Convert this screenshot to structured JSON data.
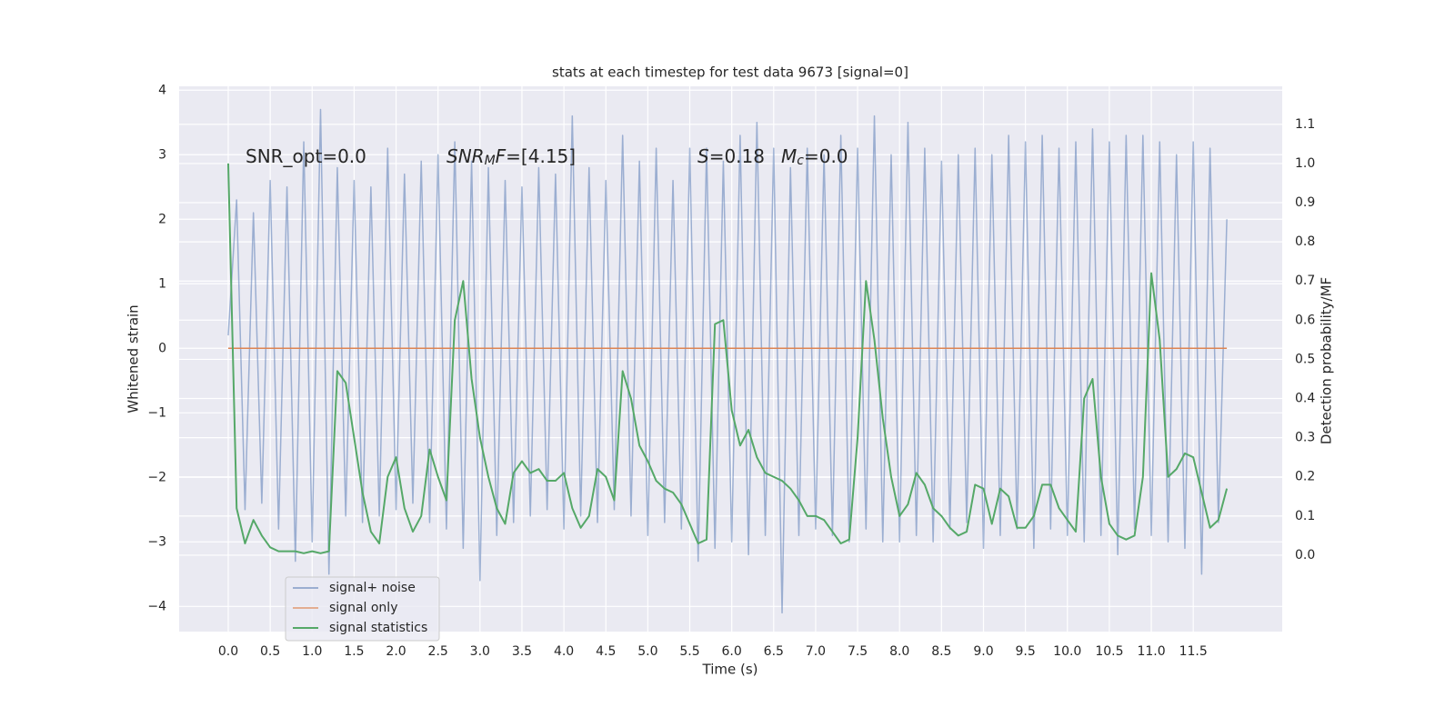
{
  "chart_data": {
    "type": "line",
    "title": "stats at each timestep for test data 9673 [signal=0]",
    "xlabel": "Time (s)",
    "ylabel": "Whitened strain",
    "y2label": "Detection probability/MF",
    "annotations": [
      [
        {
          "text": "SNR_opt=0.0"
        }
      ],
      [
        {
          "text": "SNR",
          "style": "italic"
        },
        {
          "text": "M",
          "style": "italic-sub"
        },
        {
          "text": "F",
          "style": "italic"
        },
        {
          "text": "=[4.15]"
        }
      ],
      [
        {
          "text": "S",
          "style": "italic"
        },
        {
          "text": "=0.18"
        }
      ],
      [
        {
          "text": "M",
          "style": "italic"
        },
        {
          "text": "c",
          "style": "italic-sub"
        },
        {
          "text": "=0.0"
        }
      ]
    ],
    "xlim": [
      -0.585,
      12.56
    ],
    "ylim": [
      -4.39,
      4.06
    ],
    "y2lim": [
      -0.195,
      1.197
    ],
    "xticks": [
      {
        "value": 0,
        "label": "0.0"
      },
      0.5,
      {
        "value": 1,
        "label": "1.0"
      },
      1.5,
      {
        "value": 2,
        "label": "2.0"
      },
      2.5,
      {
        "value": 3,
        "label": "3.0"
      },
      3.5,
      {
        "value": 4,
        "label": "4.0"
      },
      4.5,
      {
        "value": 5,
        "label": "5.0"
      },
      5.5,
      {
        "value": 6,
        "label": "6.0"
      },
      6.5,
      {
        "value": 7,
        "label": "7.0"
      },
      7.5,
      {
        "value": 8,
        "label": "8.0"
      },
      8.5,
      {
        "value": 9,
        "label": "9.0"
      },
      9.5,
      {
        "value": 10,
        "label": "10.0"
      },
      10.5,
      {
        "value": 11,
        "label": "11.0"
      },
      11.5
    ],
    "yticks": [
      {
        "value": -4,
        "label": "−4"
      },
      {
        "value": -3,
        "label": "−3"
      },
      {
        "value": -2,
        "label": "−2"
      },
      {
        "value": -1,
        "label": "−1"
      },
      0,
      1,
      2,
      3,
      4
    ],
    "y2ticks": [
      {
        "value": 0,
        "label": "0.0"
      },
      0.1,
      0.2,
      0.3,
      0.4,
      0.5,
      0.6,
      0.7,
      0.8,
      0.9,
      {
        "value": 1,
        "label": "1.0"
      },
      1.1
    ],
    "grid": true,
    "legend": "lower left",
    "x": [
      0,
      0.1,
      0.2,
      0.3,
      0.4,
      0.5,
      0.6,
      0.7,
      0.8,
      0.9,
      1.0,
      1.1,
      1.2,
      1.3,
      1.4,
      1.5,
      1.6,
      1.7,
      1.8,
      1.9,
      2.0,
      2.1,
      2.2,
      2.3,
      2.4,
      2.5,
      2.6,
      2.7,
      2.8,
      2.9,
      3.0,
      3.1,
      3.2,
      3.3,
      3.4,
      3.5,
      3.6,
      3.7,
      3.8,
      3.9,
      4.0,
      4.1,
      4.2,
      4.3,
      4.4,
      4.5,
      4.6,
      4.7,
      4.8,
      4.9,
      5.0,
      5.1,
      5.2,
      5.3,
      5.4,
      5.5,
      5.6,
      5.7,
      5.8,
      5.9,
      6.0,
      6.1,
      6.2,
      6.3,
      6.4,
      6.5,
      6.6,
      6.7,
      6.8,
      6.9,
      7.0,
      7.1,
      7.2,
      7.3,
      7.4,
      7.5,
      7.6,
      7.7,
      7.8,
      7.9,
      8.0,
      8.1,
      8.2,
      8.3,
      8.4,
      8.5,
      8.6,
      8.7,
      8.8,
      8.9,
      9.0,
      9.1,
      9.2,
      9.3,
      9.4,
      9.5,
      9.6,
      9.7,
      9.8,
      9.9,
      10.0,
      10.1,
      10.2,
      10.3,
      10.4,
      10.5,
      10.6,
      10.7,
      10.8,
      10.9,
      11.0,
      11.1,
      11.2,
      11.3,
      11.4,
      11.5,
      11.6,
      11.7,
      11.8,
      11.9
    ],
    "series": [
      {
        "name": "signal+ noise",
        "color": "#4c72b0",
        "values": [
          0.2,
          2.3,
          -2.5,
          2.1,
          -2.4,
          2.6,
          -2.8,
          2.5,
          -3.3,
          3.2,
          -3.0,
          3.7,
          -3.5,
          2.8,
          -2.6,
          2.6,
          -2.7,
          2.5,
          -2.6,
          3.1,
          -2.5,
          2.7,
          -2.4,
          2.9,
          -2.7,
          3.0,
          -2.8,
          3.2,
          -3.1,
          2.9,
          -3.6,
          2.8,
          -2.9,
          2.6,
          -2.7,
          2.5,
          -2.6,
          2.8,
          -2.5,
          2.7,
          -2.8,
          3.6,
          -2.6,
          2.8,
          -2.7,
          2.6,
          -2.5,
          3.3,
          -2.6,
          2.9,
          -2.9,
          3.1,
          -2.7,
          2.6,
          -2.8,
          3.1,
          -3.3,
          3.1,
          -3.1,
          2.9,
          -3.0,
          3.3,
          -3.2,
          3.5,
          -2.9,
          3.1,
          -4.1,
          2.8,
          -2.9,
          3.1,
          -2.8,
          3.0,
          -2.9,
          3.3,
          -3.0,
          3.1,
          -2.8,
          3.6,
          -3.0,
          3.0,
          -3.0,
          3.5,
          -2.9,
          3.1,
          -3.0,
          2.9,
          -2.8,
          3.0,
          -2.7,
          3.1,
          -3.1,
          3.0,
          -2.9,
          3.3,
          -2.8,
          3.2,
          -3.1,
          3.3,
          -2.8,
          3.1,
          -2.9,
          3.2,
          -3.0,
          3.4,
          -2.9,
          3.2,
          -3.2,
          3.3,
          -2.8,
          3.3,
          -2.9,
          3.2,
          -3.0,
          3.0,
          -3.1,
          3.2,
          -3.5,
          3.1,
          -2.7,
          2.0
        ]
      },
      {
        "name": "signal only",
        "color": "#dd8452",
        "values": [
          0,
          0,
          0,
          0,
          0,
          0,
          0,
          0,
          0,
          0,
          0,
          0,
          0,
          0,
          0,
          0,
          0,
          0,
          0,
          0,
          0,
          0,
          0,
          0,
          0,
          0,
          0,
          0,
          0,
          0,
          0,
          0,
          0,
          0,
          0,
          0,
          0,
          0,
          0,
          0,
          0,
          0,
          0,
          0,
          0,
          0,
          0,
          0,
          0,
          0,
          0,
          0,
          0,
          0,
          0,
          0,
          0,
          0,
          0,
          0,
          0,
          0,
          0,
          0,
          0,
          0,
          0,
          0,
          0,
          0,
          0,
          0,
          0,
          0,
          0,
          0,
          0,
          0,
          0,
          0,
          0,
          0,
          0,
          0,
          0,
          0,
          0,
          0,
          0,
          0,
          0,
          0,
          0,
          0,
          0,
          0,
          0,
          0,
          0,
          0,
          0,
          0,
          0,
          0,
          0,
          0,
          0,
          0,
          0,
          0,
          0,
          0,
          0,
          0,
          0,
          0,
          0,
          0,
          0,
          0
        ]
      },
      {
        "name": "signal statistics",
        "color": "#55a868",
        "axis": "y2",
        "values": [
          1.0,
          0.12,
          0.03,
          0.09,
          0.05,
          0.02,
          0.01,
          0.01,
          0.01,
          0.005,
          0.01,
          0.005,
          0.01,
          0.47,
          0.44,
          0.3,
          0.16,
          0.06,
          0.03,
          0.2,
          0.25,
          0.12,
          0.06,
          0.1,
          0.27,
          0.2,
          0.14,
          0.6,
          0.7,
          0.45,
          0.3,
          0.2,
          0.12,
          0.08,
          0.21,
          0.24,
          0.21,
          0.22,
          0.19,
          0.19,
          0.21,
          0.12,
          0.07,
          0.1,
          0.22,
          0.2,
          0.14,
          0.47,
          0.4,
          0.28,
          0.24,
          0.19,
          0.17,
          0.16,
          0.13,
          0.08,
          0.03,
          0.04,
          0.59,
          0.6,
          0.37,
          0.28,
          0.32,
          0.25,
          0.21,
          0.2,
          0.19,
          0.17,
          0.14,
          0.1,
          0.1,
          0.09,
          0.06,
          0.03,
          0.04,
          0.3,
          0.7,
          0.55,
          0.35,
          0.2,
          0.1,
          0.13,
          0.21,
          0.18,
          0.12,
          0.1,
          0.07,
          0.05,
          0.06,
          0.18,
          0.17,
          0.08,
          0.17,
          0.15,
          0.07,
          0.07,
          0.1,
          0.18,
          0.18,
          0.12,
          0.09,
          0.06,
          0.4,
          0.45,
          0.2,
          0.08,
          0.05,
          0.04,
          0.05,
          0.2,
          0.72,
          0.55,
          0.2,
          0.22,
          0.26,
          0.25,
          0.16,
          0.07,
          0.09,
          0.17
        ]
      }
    ]
  }
}
